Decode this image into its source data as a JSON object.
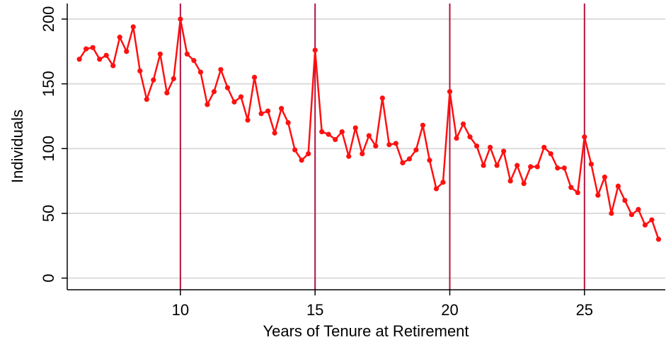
{
  "chart_data": {
    "type": "line",
    "xlabel": "Years of Tenure at Retirement",
    "ylabel": "Individuals",
    "x": [
      6.25,
      6.5,
      6.75,
      7,
      7.25,
      7.5,
      7.75,
      8,
      8.25,
      8.5,
      8.75,
      9,
      9.25,
      9.5,
      9.75,
      10,
      10.25,
      10.5,
      10.75,
      11,
      11.25,
      11.5,
      11.75,
      12,
      12.25,
      12.5,
      12.75,
      13,
      13.25,
      13.5,
      13.75,
      14,
      14.25,
      14.5,
      14.75,
      15,
      15.25,
      15.5,
      15.75,
      16,
      16.25,
      16.5,
      16.75,
      17,
      17.25,
      17.5,
      17.75,
      18,
      18.25,
      18.5,
      18.75,
      19,
      19.25,
      19.5,
      19.75,
      20,
      20.25,
      20.5,
      20.75,
      21,
      21.25,
      21.5,
      21.75,
      22,
      22.25,
      22.5,
      22.75,
      23,
      23.25,
      23.5,
      23.75,
      24,
      24.25,
      24.5,
      24.75,
      25,
      25.25,
      25.5,
      25.75,
      26,
      26.25,
      26.5,
      26.75,
      27,
      27.25,
      27.5,
      27.75
    ],
    "values": [
      169,
      177,
      178,
      169,
      172,
      164,
      186,
      175,
      194,
      160,
      138,
      153,
      173,
      143,
      154,
      200,
      173,
      168,
      159,
      134,
      144,
      161,
      147,
      136,
      140,
      122,
      155,
      127,
      129,
      112,
      131,
      120,
      99,
      91,
      96,
      176,
      113,
      111,
      107,
      113,
      94,
      116,
      96,
      110,
      102,
      139,
      103,
      104,
      89,
      92,
      99,
      118,
      91,
      69,
      74,
      144,
      108,
      119,
      109,
      102,
      87,
      101,
      87,
      98,
      75,
      87,
      73,
      86,
      86,
      101,
      96,
      85,
      85,
      70,
      66,
      109,
      88,
      64,
      78,
      50,
      71,
      60,
      49,
      53,
      41,
      45,
      30
    ],
    "color": "#ff1010",
    "xlim": [
      5.8,
      28
    ],
    "ylim": [
      -9,
      212
    ],
    "xticks": [
      10,
      15,
      20,
      25
    ],
    "yticks": [
      0,
      50,
      100,
      150,
      200
    ],
    "grid": true,
    "vlines": [
      10,
      15,
      20,
      25
    ],
    "vline_color": "#b5123f"
  }
}
